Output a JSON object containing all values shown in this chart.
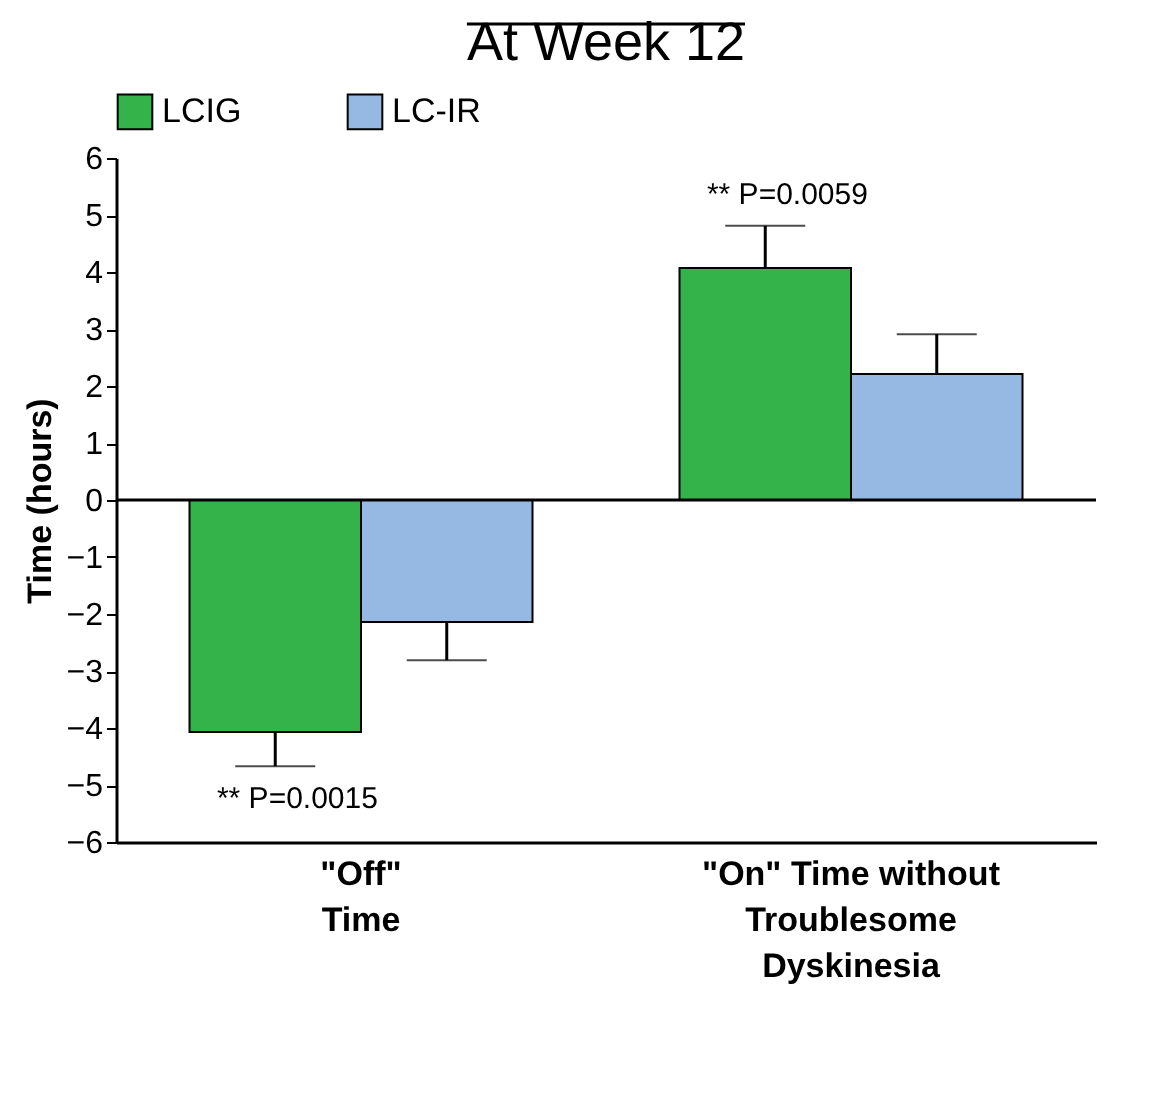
{
  "chart_data": {
    "type": "bar",
    "title": "At Week 12",
    "ylabel": "Time (hours)",
    "categories": [
      "\"Off\"\nTime",
      "\"On\" Time without\nTroublesome\nDyskinesia"
    ],
    "series": [
      {
        "name": "LCIG",
        "color": "#33b34a",
        "values": [
          -4.07,
          4.07
        ],
        "errors": [
          0.6,
          0.74
        ]
      },
      {
        "name": "LC-IR",
        "color": "#96b9e3",
        "values": [
          -2.14,
          2.21
        ],
        "errors": [
          0.67,
          0.7
        ]
      }
    ],
    "ylim": [
      -6,
      6
    ],
    "yticks": [
      -6,
      -5,
      -4,
      -3,
      -2,
      -1,
      0,
      1,
      2,
      3,
      4,
      5,
      6
    ],
    "ref_lines": [
      {
        "axis": "y",
        "value": 0
      }
    ],
    "annotations": [
      "** P=0.0015",
      "** P=0.0059"
    ],
    "legend": "top",
    "grid": false
  }
}
